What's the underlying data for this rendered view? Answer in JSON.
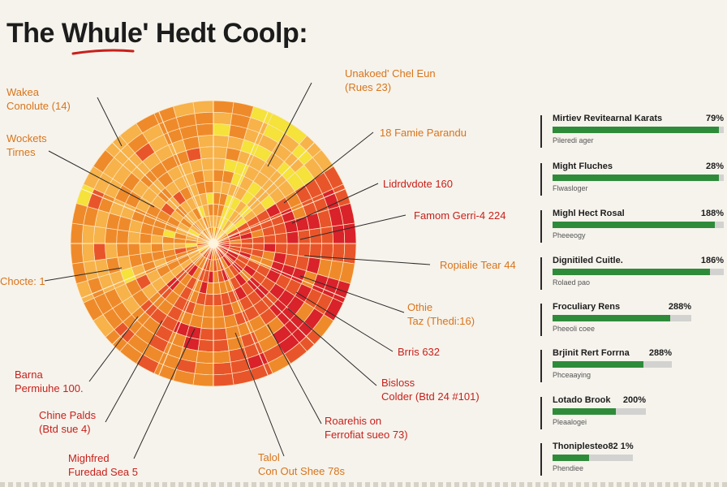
{
  "title": {
    "part1": "The ",
    "part2": "Whule'",
    "part3": " Hedt Coolp:"
  },
  "colors": {
    "background": "#f6f3ec",
    "yellow": "#f5e23a",
    "light_orange": "#f7b24a",
    "orange": "#ef8a2a",
    "red_orange": "#e9552a",
    "red": "#d9222a",
    "bar_green": "#2e8b3a",
    "bar_track": "#d2d2d0",
    "accent_red": "#c8201b"
  },
  "chart_data": [
    {
      "type": "radial-sunburst",
      "title": "",
      "labels": [
        {
          "lines": [
            "Unakoed' Chel Eun",
            "(Rues 23)"
          ],
          "color": "orange"
        },
        {
          "lines": [
            "18 Famie Parandu"
          ],
          "color": "orange"
        },
        {
          "lines": [
            "Lidrdvdote 160"
          ],
          "color": "red"
        },
        {
          "lines": [
            "Famom Gerri-4 224"
          ],
          "color": "red"
        },
        {
          "lines": [
            "Ropialie Tear 44"
          ],
          "color": "orange"
        },
        {
          "lines": [
            "Othie",
            "Taz (Thedi:16)"
          ],
          "color": "orange"
        },
        {
          "lines": [
            "Brris 632"
          ],
          "color": "red"
        },
        {
          "lines": [
            "Bisloss",
            "Colder (Btd 24 #101)"
          ],
          "color": "red"
        },
        {
          "lines": [
            "Roarehis on",
            "Ferrofiat sueo 73)"
          ],
          "color": "red"
        },
        {
          "lines": [
            "Talol",
            "Con Out Shee 78s"
          ],
          "color": "orange"
        },
        {
          "lines": [
            "Mighfred",
            "Furedad Sea 5"
          ],
          "color": "red"
        },
        {
          "lines": [
            "Chine Palds",
            "(Btd sue 4)"
          ],
          "color": "red"
        },
        {
          "lines": [
            "Barna",
            "Permiuhe 100."
          ],
          "color": "red"
        },
        {
          "lines": [
            "Chocte: 1"
          ],
          "color": "orange"
        },
        {
          "lines": [
            "Wockets",
            "Tirnes"
          ],
          "color": "orange"
        },
        {
          "lines": [
            "Wakea",
            "Conolute (14)"
          ],
          "color": "orange"
        }
      ]
    },
    {
      "type": "bar",
      "orientation": "horizontal",
      "title": "",
      "categories": [
        "Mirtiev Revitearnal Karats",
        "Might Fluches",
        "Mighl Hect Rosal",
        "Dignitiled Cuitle.",
        "Froculiary Rens",
        "Brjinit Rert Forrna",
        "Lotado Brook",
        "Thoniplesteo82 1%"
      ],
      "value_labels": [
        "79%",
        "28%",
        "188%",
        "186%",
        "288%",
        "288%",
        "200%",
        ""
      ],
      "sublabels": [
        "Pileredi ager",
        "Flwasloger",
        "Pheeeogy",
        "Rolaed pao",
        "Pheeoli coee",
        "Phceaaying",
        "Pleaalogei",
        "Phendiee"
      ],
      "fill_fraction": [
        0.97,
        0.97,
        0.95,
        0.92,
        0.85,
        0.76,
        0.68,
        0.45
      ]
    }
  ]
}
